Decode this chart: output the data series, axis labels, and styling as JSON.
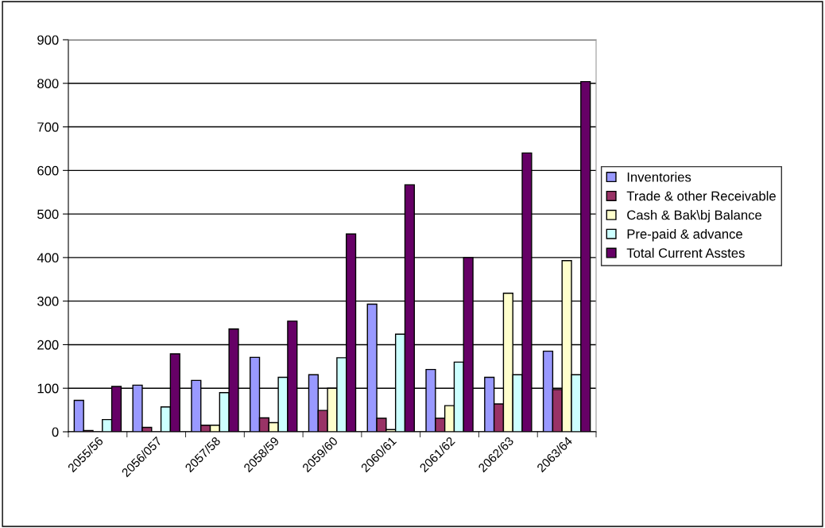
{
  "chart_data": {
    "type": "bar",
    "categories": [
      "2055/56",
      "2056/057",
      "2057/58",
      "2058/59",
      "2059/60",
      "2060/61",
      "2061/62",
      "2062/63",
      "2063/64"
    ],
    "series": [
      {
        "name": "Inventories",
        "color": "#9999ff",
        "values": [
          72,
          107,
          118,
          171,
          131,
          293,
          143,
          125,
          185
        ]
      },
      {
        "name": "Trade & other Receivable",
        "color": "#993366",
        "values": [
          3,
          10,
          15,
          32,
          49,
          31,
          31,
          64,
          97
        ]
      },
      {
        "name": "Cash & Bak\\bj Balance",
        "color": "#ffffcc",
        "values": [
          null,
          null,
          15,
          21,
          100,
          5,
          60,
          318,
          393
        ]
      },
      {
        "name": "Pre-paid & advance",
        "color": "#ccffff",
        "values": [
          28,
          57,
          90,
          125,
          170,
          224,
          160,
          131,
          131
        ]
      },
      {
        "name": "Total Current Asstes",
        "color": "#660066",
        "values": [
          104,
          179,
          236,
          254,
          454,
          567,
          400,
          640,
          804
        ]
      }
    ],
    "ylim": [
      0,
      900
    ],
    "yticks": [
      0,
      100,
      200,
      300,
      400,
      500,
      600,
      700,
      800,
      900
    ],
    "grid": "y",
    "legend": "right"
  }
}
